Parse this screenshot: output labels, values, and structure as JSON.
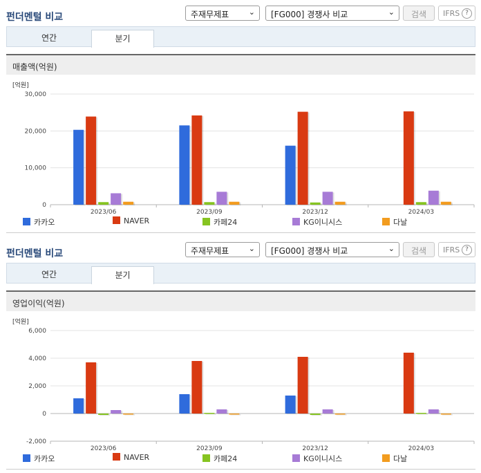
{
  "panels": [
    {
      "title": "펀더멘털 비교",
      "select1": "주재무제표",
      "select2": "[FG000] 경쟁사 비교",
      "search_label": "검색",
      "ifrs_label": "IFRS",
      "help_label": "?",
      "tabs": [
        "연간",
        "분기"
      ],
      "active_tab": "분기",
      "section_label": "매출액(억원)"
    },
    {
      "title": "펀더멘털 비교",
      "select1": "주재무제표",
      "select2": "[FG000] 경쟁사 비교",
      "search_label": "검색",
      "ifrs_label": "IFRS",
      "help_label": "?",
      "tabs": [
        "연간",
        "분기"
      ],
      "active_tab": "분기",
      "section_label": "영업이익(억원)"
    }
  ],
  "colors": {
    "카카오": "#2f6bdc",
    "NAVER": "#d93a12",
    "카페24": "#86c421",
    "KG이니시스": "#a77bd6",
    "다날": "#f29c1f"
  },
  "chart_data": [
    {
      "type": "bar",
      "unit_label": "[억원]",
      "categories": [
        "2023/06",
        "2023/09",
        "2023/12",
        "2024/03"
      ],
      "ylim": [
        0,
        30000
      ],
      "yticks": [
        0,
        10000,
        20000,
        30000
      ],
      "ytick_labels": [
        "0",
        "10,000",
        "20,000",
        "30,000"
      ],
      "series": [
        {
          "name": "카카오",
          "values": [
            20300,
            21500,
            16000,
            null
          ]
        },
        {
          "name": "NAVER",
          "values": [
            23900,
            24200,
            25200,
            25300
          ]
        },
        {
          "name": "카페24",
          "values": [
            700,
            700,
            600,
            700
          ]
        },
        {
          "name": "KG이니시스",
          "values": [
            3100,
            3500,
            3500,
            3800
          ]
        },
        {
          "name": "다날",
          "values": [
            800,
            800,
            800,
            800
          ]
        }
      ]
    },
    {
      "type": "bar",
      "unit_label": "[억원]",
      "categories": [
        "2023/06",
        "2023/09",
        "2023/12",
        "2024/03"
      ],
      "ylim": [
        -2000,
        6000
      ],
      "yticks": [
        -2000,
        0,
        2000,
        4000,
        6000
      ],
      "ytick_labels": [
        "-2,000",
        "0",
        "2,000",
        "4,000",
        "6,000"
      ],
      "series": [
        {
          "name": "카카오",
          "values": [
            1100,
            1400,
            1300,
            null
          ]
        },
        {
          "name": "NAVER",
          "values": [
            3700,
            3800,
            4100,
            4400
          ]
        },
        {
          "name": "카페24",
          "values": [
            -100,
            50,
            -100,
            50
          ]
        },
        {
          "name": "KG이니시스",
          "values": [
            250,
            300,
            300,
            300
          ]
        },
        {
          "name": "다날",
          "values": [
            -20,
            -20,
            -20,
            -20
          ]
        }
      ]
    }
  ]
}
